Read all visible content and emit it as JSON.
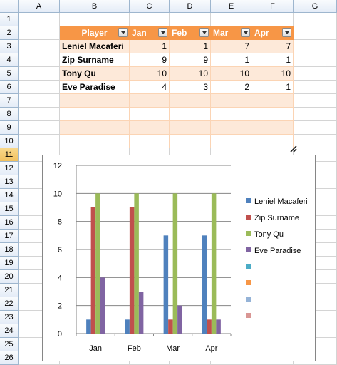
{
  "columns": [
    "A",
    "B",
    "C",
    "D",
    "E",
    "F",
    "G"
  ],
  "rows": [
    1,
    2,
    3,
    4,
    5,
    6,
    7,
    8,
    9,
    10,
    11,
    12,
    13,
    14,
    15,
    16,
    17,
    18,
    19,
    20,
    21,
    22,
    23,
    24,
    25,
    26
  ],
  "table": {
    "headers": [
      "Player",
      "Jan",
      "Feb",
      "Mar",
      "Apr"
    ],
    "players": [
      {
        "name": "Leniel Macaferi",
        "values": [
          1,
          1,
          7,
          7
        ]
      },
      {
        "name": "Zip Surname",
        "values": [
          9,
          9,
          1,
          1
        ]
      },
      {
        "name": "Tony Qu",
        "values": [
          10,
          10,
          10,
          10
        ]
      },
      {
        "name": "Eve Paradise",
        "values": [
          4,
          3,
          2,
          1
        ]
      }
    ],
    "header_color": "#f79646",
    "band_color": "#fde9d9"
  },
  "chart_data": {
    "type": "bar",
    "categories": [
      "Jan",
      "Feb",
      "Mar",
      "Apr"
    ],
    "series": [
      {
        "name": "Leniel Macaferi",
        "values": [
          1,
          1,
          7,
          7
        ],
        "color": "#4f81bd"
      },
      {
        "name": "Zip Surname",
        "values": [
          9,
          9,
          1,
          1
        ],
        "color": "#c0504d"
      },
      {
        "name": "Tony Qu",
        "values": [
          10,
          10,
          10,
          10
        ],
        "color": "#9bbb59"
      },
      {
        "name": "Eve Paradise",
        "values": [
          4,
          3,
          2,
          1
        ],
        "color": "#8064a2"
      }
    ],
    "extra_legend_colors": [
      "#4bacc6",
      "#f79646",
      "#95b3d7",
      "#d99694"
    ],
    "ylim": [
      0,
      12
    ],
    "yticks": [
      0,
      2,
      4,
      6,
      8,
      10,
      12
    ],
    "grid": true,
    "legend": "right"
  }
}
